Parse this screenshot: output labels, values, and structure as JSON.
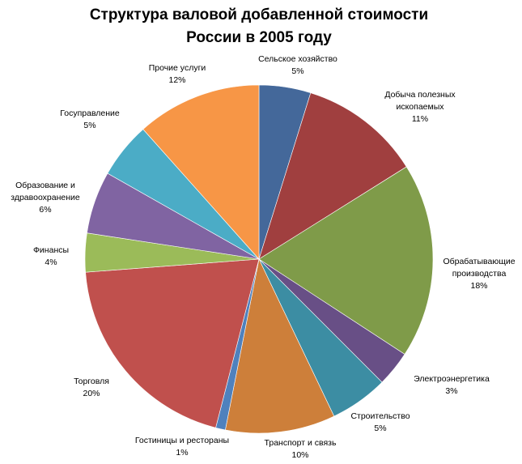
{
  "chart_data": {
    "type": "pie",
    "title": [
      "Структура валовой добавленной стоимости",
      "России в 2005 году"
    ],
    "legend": "none",
    "slices": [
      {
        "name": [
          "Сельское хозяйство"
        ],
        "value": 4.8,
        "label": "5%",
        "color": "#44689A"
      },
      {
        "name": [
          "Добыча полезных",
          "ископаемых"
        ],
        "value": 11.3,
        "label": "11%",
        "color": "#A03F3F"
      },
      {
        "name": [
          "Обрабатывающие",
          "производства"
        ],
        "value": 18.1,
        "label": "18%",
        "color": "#7F9B49"
      },
      {
        "name": [
          "Электроэнергетика"
        ],
        "value": 3.3,
        "label": "3%",
        "color": "#684F86"
      },
      {
        "name": [
          "Строительство"
        ],
        "value": 5.4,
        "label": "5%",
        "color": "#3C8DA3"
      },
      {
        "name": [
          "Транспорт и связь"
        ],
        "value": 10.2,
        "label": "10%",
        "color": "#CD7F3A"
      },
      {
        "name": [
          "Гостиницы и рестораны"
        ],
        "value": 0.9,
        "label": "1%",
        "color": "#4F81BD"
      },
      {
        "name": [
          "Торговля"
        ],
        "value": 19.8,
        "label": "20%",
        "color": "#C0504D"
      },
      {
        "name": [
          "Финансы"
        ],
        "value": 3.6,
        "label": "4%",
        "color": "#9BBB59"
      },
      {
        "name": [
          "Образование и",
          "здравоохранение"
        ],
        "value": 5.8,
        "label": "6%",
        "color": "#8064A2"
      },
      {
        "name": [
          "Госуправление"
        ],
        "value": 5.2,
        "label": "5%",
        "color": "#4BACC6"
      },
      {
        "name": [
          "Прочие услуги"
        ],
        "value": 11.6,
        "label": "12%",
        "color": "#F79646"
      }
    ]
  }
}
